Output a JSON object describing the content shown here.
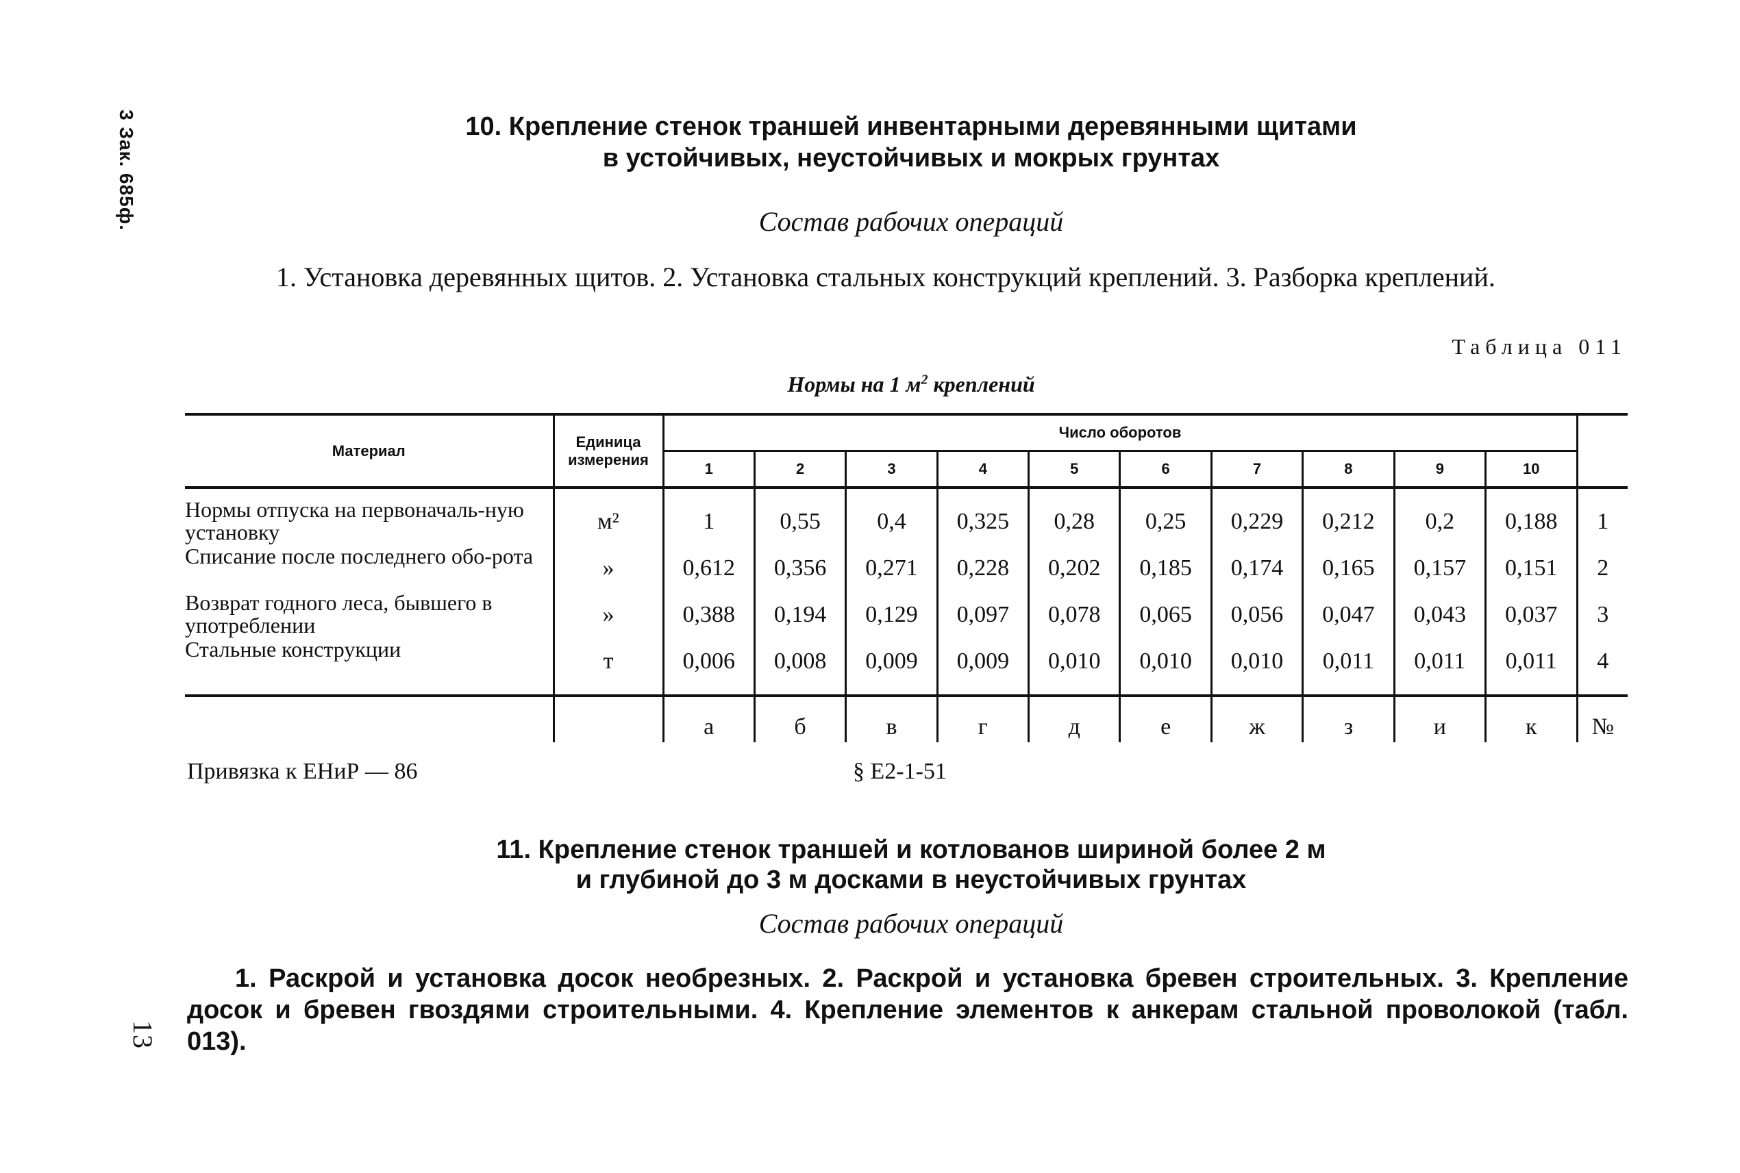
{
  "margin_note": "3 Зак. 685ф.",
  "page_number": "13",
  "section10": {
    "title_line1": "10. Крепление стенок траншей инвентарными деревянными щитами",
    "title_line2": "в устойчивых, неустойчивых и мокрых грунтах",
    "subtitle": "Состав рабочих операций",
    "operations": "1. Установка деревянных щитов. 2. Установка стальных конструкций креплений. 3. Разборка креплений."
  },
  "table": {
    "number": "Таблица 011",
    "caption_prefix": "Нормы на 1 м",
    "caption_sup": "2",
    "caption_suffix": " креплений",
    "header_material": "Материал",
    "header_unit": "Единица измерения",
    "header_turns": "Число оборотов",
    "turns": [
      "1",
      "2",
      "3",
      "4",
      "5",
      "6",
      "7",
      "8",
      "9",
      "10"
    ],
    "rows": [
      {
        "material": "Нормы отпуска на первоначаль-ную установку",
        "unit": "м²",
        "values": [
          "1",
          "0,55",
          "0,4",
          "0,325",
          "0,28",
          "0,25",
          "0,229",
          "0,212",
          "0,2",
          "0,188"
        ],
        "no": "1"
      },
      {
        "material": "Списание после последнего обо-рота",
        "unit": "»",
        "values": [
          "0,612",
          "0,356",
          "0,271",
          "0,228",
          "0,202",
          "0,185",
          "0,174",
          "0,165",
          "0,157",
          "0,151"
        ],
        "no": "2"
      },
      {
        "material": "Возврат годного леса, бывшего в употреблении",
        "unit": "»",
        "values": [
          "0,388",
          "0,194",
          "0,129",
          "0,097",
          "0,078",
          "0,065",
          "0,056",
          "0,047",
          "0,043",
          "0,037"
        ],
        "no": "3"
      },
      {
        "material": "Стальные конструкции",
        "unit": "т",
        "values": [
          "0,006",
          "0,008",
          "0,009",
          "0,009",
          "0,010",
          "0,010",
          "0,010",
          "0,011",
          "0,011",
          "0,011"
        ],
        "no": "4"
      }
    ],
    "column_letters": [
      "а",
      "б",
      "в",
      "г",
      "д",
      "е",
      "ж",
      "з",
      "и",
      "к"
    ],
    "no_label": "№",
    "binding": "Привязка к ЕНиР — 86",
    "reference": "§ Е2-1-51"
  },
  "section11": {
    "title_line1": "11. Крепление стенок траншей и котлованов шириной более 2 м",
    "title_line2": "и глубиной до 3 м досками в неустойчивых грунтах",
    "subtitle": "Состав рабочих операций",
    "operations": "1. Раскрой и установка досок необрезных. 2. Раскрой и установка бревен строительных. 3. Крепление досок и бревен гвоздями строительными. 4. Крепление элементов к анкерам стальной проволокой (табл. 013)."
  }
}
